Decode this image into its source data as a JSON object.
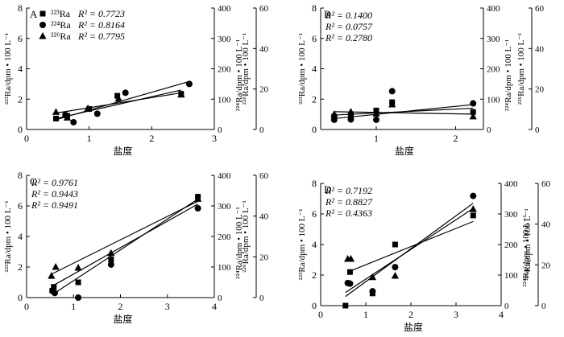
{
  "figure": {
    "background": "#ffffff",
    "ink": "#000000"
  },
  "chart_data": [
    {
      "panel": "A",
      "type": "scatter",
      "xlabel": "盐度",
      "ylabel_left": "²²³Ra/dpm • 100 L⁻¹",
      "ylabel_right_inner": "²²⁴Ra/dpm • 100 L⁻¹",
      "ylabel_right_outer": "²²⁶Ra/dpm • 100 L⁻¹",
      "xlim": [
        0,
        3
      ],
      "xticks": [
        "0",
        "1",
        "2",
        "3"
      ],
      "ylim_left": [
        0,
        8
      ],
      "yticks_left": [
        "0",
        "2",
        "4",
        "6",
        "8"
      ],
      "ylim_right_inner": [
        0,
        400
      ],
      "yticks_right_inner": [
        "0",
        "100",
        "200",
        "300",
        "400"
      ],
      "ylim_right_outer": [
        0,
        60
      ],
      "yticks_right_outer": [
        "0",
        "20",
        "40",
        "60"
      ],
      "legend": {
        "placement": "top-left",
        "entries": [
          {
            "marker": "square",
            "label": "²²³Ra",
            "r2": "R² = 0.7723"
          },
          {
            "marker": "circle",
            "label": "²²⁴Ra",
            "r2": "R² = 0.8164"
          },
          {
            "marker": "triangle",
            "label": "²²⁶Ra",
            "r2": "R² = 0.7795"
          }
        ]
      },
      "series": [
        {
          "marker": "square",
          "axis": "left",
          "points": [
            [
              0.47,
              0.72
            ],
            [
              0.65,
              0.9
            ],
            [
              1.0,
              1.35
            ],
            [
              1.45,
              2.22
            ],
            [
              2.47,
              2.35
            ]
          ],
          "fit": [
            [
              0.47,
              0.72
            ],
            [
              2.47,
              2.6
            ]
          ]
        },
        {
          "marker": "circle",
          "axis": "right_inner",
          "points": [
            [
              0.62,
              48
            ],
            [
              0.75,
              24
            ],
            [
              1.13,
              52
            ],
            [
              1.58,
              121
            ],
            [
              2.6,
              150
            ]
          ],
          "fit": [
            [
              0.5,
              34
            ],
            [
              2.6,
              158
            ]
          ]
        },
        {
          "marker": "triangle",
          "axis": "right_outer",
          "points": [
            [
              0.47,
              8.6
            ],
            [
              0.65,
              5.8
            ],
            [
              0.98,
              10.4
            ],
            [
              1.47,
              15.2
            ],
            [
              2.47,
              17.2
            ]
          ],
          "fit": [
            [
              0.47,
              8.1
            ],
            [
              2.47,
              18.1
            ]
          ]
        }
      ]
    },
    {
      "panel": "B",
      "type": "scatter",
      "xlabel": "盐度",
      "ylabel_left": "²²³Ra/dpm • 100 L⁻¹",
      "ylabel_right_inner": "²²⁴Ra/dpm • 100 L⁻¹",
      "ylabel_right_outer": "²²⁶Ra/dpm • 100 L⁻¹",
      "xlim": [
        0,
        2.5
      ],
      "xticks": [
        "1",
        "2"
      ],
      "ylim_left": [
        0,
        8
      ],
      "yticks_left": [
        "0",
        "2",
        "4",
        "6",
        "8"
      ],
      "ylim_right_inner": [
        0,
        400
      ],
      "yticks_right_inner": [
        "0",
        "100",
        "200",
        "300",
        "400"
      ],
      "ylim_right_outer": [
        0,
        60
      ],
      "yticks_right_outer": [
        "0",
        "20",
        "40",
        "60"
      ],
      "annotations": [
        "R² = 0.1400",
        "R² = 0.0757",
        "R² = 0.2780"
      ],
      "series": [
        {
          "marker": "square",
          "axis": "left",
          "points": [
            [
              0.47,
              0.85
            ],
            [
              0.68,
              0.9
            ],
            [
              1.0,
              1.25
            ],
            [
              1.2,
              1.8
            ],
            [
              2.22,
              1.15
            ]
          ],
          "fit": [
            [
              0.47,
              0.95
            ],
            [
              2.22,
              1.4
            ]
          ]
        },
        {
          "marker": "circle",
          "axis": "right_inner",
          "points": [
            [
              0.47,
              32
            ],
            [
              0.68,
              33
            ],
            [
              1.0,
              32
            ],
            [
              1.2,
              126
            ],
            [
              2.22,
              86
            ]
          ],
          "fit": [
            [
              0.47,
              36
            ],
            [
              2.22,
              82
            ]
          ]
        },
        {
          "marker": "triangle",
          "axis": "right_outer",
          "points": [
            [
              0.47,
              7.5
            ],
            [
              0.68,
              8.7
            ],
            [
              1.0,
              7.8
            ],
            [
              1.2,
              12.3
            ],
            [
              2.22,
              6.4
            ]
          ],
          "fit": [
            [
              0.47,
              8.8
            ],
            [
              2.22,
              7.6
            ]
          ]
        }
      ]
    },
    {
      "panel": "C",
      "type": "scatter",
      "xlabel": "盐度",
      "ylabel_left": "²²³Ra/dpm • 100 L⁻¹",
      "ylabel_right_inner": "²²⁴Ra/dpm • 100 L⁻¹",
      "ylabel_right_outer": "²²⁶Ra/dpm • 100 L⁻¹",
      "xlim": [
        0,
        4
      ],
      "xticks": [
        "0",
        "1",
        "2",
        "3",
        "4"
      ],
      "ylim_left": [
        0,
        8
      ],
      "yticks_left": [
        "0",
        "2",
        "4",
        "6",
        "8"
      ],
      "ylim_right_inner": [
        0,
        400
      ],
      "yticks_right_inner": [
        "0",
        "100",
        "200",
        "300",
        "400"
      ],
      "ylim_right_outer": [
        0,
        60
      ],
      "yticks_right_outer": [
        "0",
        "20",
        "40",
        "60"
      ],
      "annotations": [
        "R² = 0.9761",
        "R² = 0.9443",
        "R² = 0.9491"
      ],
      "series": [
        {
          "marker": "square",
          "axis": "left",
          "points": [
            [
              0.55,
              0.45
            ],
            [
              0.58,
              0.7
            ],
            [
              1.1,
              1.0
            ],
            [
              1.8,
              2.5
            ],
            [
              3.65,
              6.6
            ]
          ],
          "fit": [
            [
              0.55,
              0.2
            ],
            [
              3.65,
              6.45
            ]
          ]
        },
        {
          "marker": "circle",
          "axis": "right_inner",
          "points": [
            [
              0.55,
              22
            ],
            [
              0.6,
              15
            ],
            [
              1.1,
              0
            ],
            [
              1.8,
              108
            ],
            [
              3.65,
              292
            ]
          ],
          "fit": [
            [
              0.55,
              38
            ],
            [
              3.65,
              306
            ]
          ]
        },
        {
          "marker": "triangle",
          "axis": "right_outer",
          "points": [
            [
              0.53,
              10.6
            ],
            [
              0.62,
              15.0
            ],
            [
              1.1,
              14.6
            ],
            [
              1.8,
              21.8
            ],
            [
              3.65,
              48.4
            ]
          ],
          "fit": [
            [
              0.53,
              11.5
            ],
            [
              3.65,
              47.3
            ]
          ]
        }
      ]
    },
    {
      "panel": "D",
      "type": "scatter",
      "xlabel": "盐度",
      "ylabel_left": "²²³Ra/dpm • 100 L⁻¹",
      "ylabel_right_inner": "²²⁴Ra/dpm • 100 L⁻¹",
      "ylabel_right_outer": "²²⁶Ra/dpm • 100 L⁻¹",
      "xlim": [
        0,
        4
      ],
      "xticks": [
        "0",
        "1",
        "2",
        "3",
        "4"
      ],
      "ylim_left": [
        0,
        8
      ],
      "yticks_left": [
        "0",
        "2",
        "4",
        "6",
        "8"
      ],
      "ylim_right_inner": [
        0,
        400
      ],
      "yticks_right_inner": [
        "0",
        "100",
        "200",
        "300",
        "400"
      ],
      "ylim_right_outer": [
        0,
        60
      ],
      "yticks_right_outer": [
        "0",
        "20",
        "40",
        "60"
      ],
      "annotations": [
        "R² = 0.7192",
        "R² = 0.8827",
        "R² = 0.4363"
      ],
      "series": [
        {
          "marker": "square",
          "axis": "left",
          "points": [
            [
              0.55,
              0.0
            ],
            [
              0.65,
              2.2
            ],
            [
              1.15,
              0.8
            ],
            [
              1.65,
              4.0
            ],
            [
              3.38,
              5.9
            ]
          ],
          "fit": [
            [
              0.55,
              0.6
            ],
            [
              3.38,
              6.7
            ]
          ]
        },
        {
          "marker": "circle",
          "axis": "right_inner",
          "points": [
            [
              0.6,
              74
            ],
            [
              0.65,
              72
            ],
            [
              1.15,
              47
            ],
            [
              1.65,
              126
            ],
            [
              3.38,
              359
            ]
          ],
          "fit": [
            [
              0.55,
              43
            ],
            [
              3.38,
              318
            ]
          ]
        },
        {
          "marker": "triangle",
          "axis": "right_outer",
          "points": [
            [
              0.6,
              22.9
            ],
            [
              0.67,
              22.9
            ],
            [
              1.15,
              13.9
            ],
            [
              1.65,
              14.6
            ],
            [
              3.38,
              47.3
            ]
          ],
          "fit": [
            [
              0.6,
              16.5
            ],
            [
              3.38,
              41.3
            ]
          ]
        }
      ]
    }
  ]
}
